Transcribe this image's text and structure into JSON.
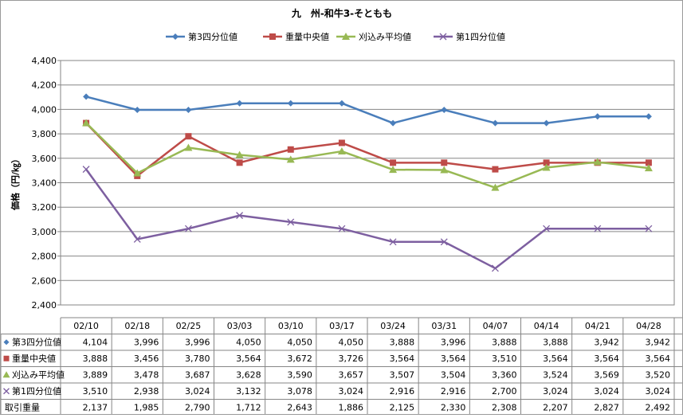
{
  "chart_data": {
    "type": "line",
    "title": "九　州-和牛3-そともも",
    "ylabel": "価格（円/㎏）",
    "xlabel": "",
    "ylim": [
      2400,
      4400
    ],
    "y_ticks": [
      2400,
      2600,
      2800,
      3000,
      3200,
      3400,
      3600,
      3800,
      4000,
      4200,
      4400
    ],
    "y_tick_labels": [
      "2,400",
      "2,600",
      "2,800",
      "3,000",
      "3,200",
      "3,400",
      "3,600",
      "3,800",
      "4,000",
      "4,200",
      "4,400"
    ],
    "grid": true,
    "legend_position": "top",
    "categories": [
      "02/10",
      "02/18",
      "02/25",
      "03/03",
      "03/10",
      "03/17",
      "03/24",
      "03/31",
      "04/07",
      "04/14",
      "04/21",
      "04/28"
    ],
    "series": [
      {
        "name": "第3四分位値",
        "color": "#4a7ebb",
        "marker": "diamond",
        "values": [
          4104,
          3996,
          3996,
          4050,
          4050,
          4050,
          3888,
          3996,
          3888,
          3888,
          3942,
          3942
        ],
        "labels": [
          "4,104",
          "3,996",
          "3,996",
          "4,050",
          "4,050",
          "4,050",
          "3,888",
          "3,996",
          "3,888",
          "3,888",
          "3,942",
          "3,942"
        ]
      },
      {
        "name": "重量中央値",
        "color": "#be4b48",
        "marker": "square",
        "values": [
          3888,
          3456,
          3780,
          3564,
          3672,
          3726,
          3564,
          3564,
          3510,
          3564,
          3564,
          3564
        ],
        "labels": [
          "3,888",
          "3,456",
          "3,780",
          "3,564",
          "3,672",
          "3,726",
          "3,564",
          "3,564",
          "3,510",
          "3,564",
          "3,564",
          "3,564"
        ]
      },
      {
        "name": "刈込み平均値",
        "color": "#98b954",
        "marker": "triangle",
        "values": [
          3889,
          3478,
          3687,
          3628,
          3590,
          3657,
          3507,
          3504,
          3360,
          3524,
          3569,
          3520
        ],
        "labels": [
          "3,889",
          "3,478",
          "3,687",
          "3,628",
          "3,590",
          "3,657",
          "3,507",
          "3,504",
          "3,360",
          "3,524",
          "3,569",
          "3,520"
        ]
      },
      {
        "name": "第1四分位値",
        "color": "#7d5fa0",
        "marker": "x",
        "values": [
          3510,
          2938,
          3024,
          3132,
          3078,
          3024,
          2916,
          2916,
          2700,
          3024,
          3024,
          3024
        ],
        "labels": [
          "3,510",
          "2,938",
          "3,024",
          "3,132",
          "3,078",
          "3,024",
          "2,916",
          "2,916",
          "2,700",
          "3,024",
          "3,024",
          "3,024"
        ]
      }
    ],
    "table_extra_rows": [
      {
        "name": "取引重量",
        "values": [
          2137,
          1985,
          2790,
          1712,
          2643,
          1886,
          2125,
          2330,
          2308,
          2207,
          2827,
          2492
        ],
        "labels": [
          "2,137",
          "1,985",
          "2,790",
          "1,712",
          "2,643",
          "1,886",
          "2,125",
          "2,330",
          "2,308",
          "2,207",
          "2,827",
          "2,492"
        ]
      }
    ]
  }
}
